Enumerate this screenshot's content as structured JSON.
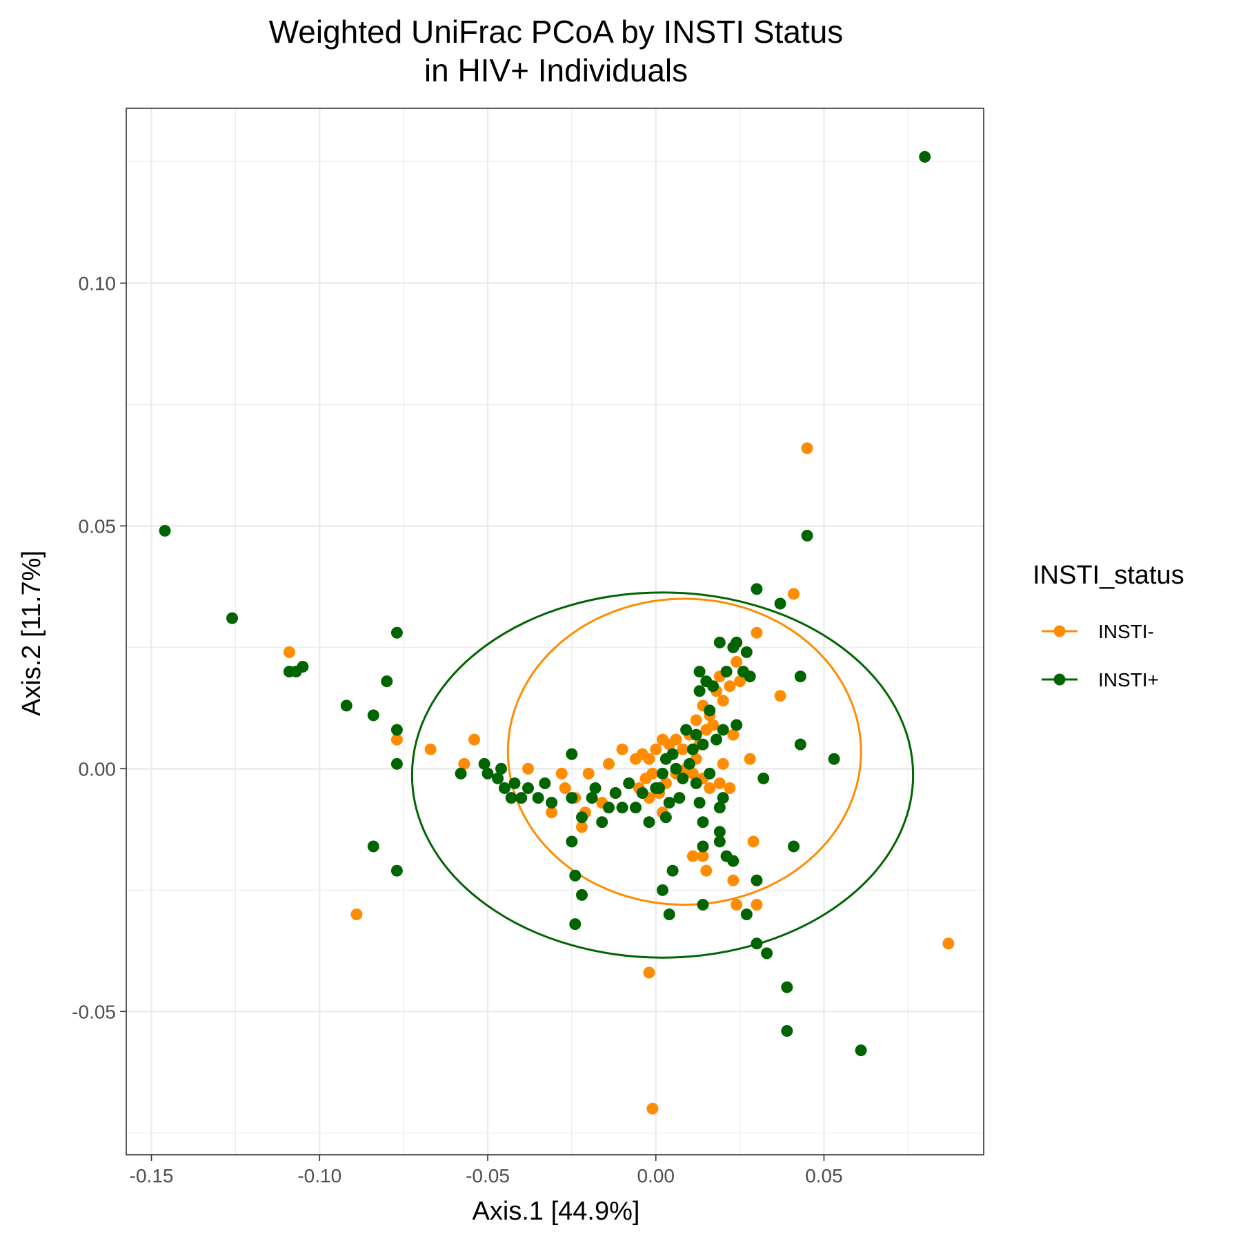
{
  "chart_data": {
    "type": "scatter",
    "title": "Weighted UniFrac PCoA by INSTI Status",
    "subtitle": "in HIV+ Individuals",
    "xlabel": "Axis.1   [44.9%]",
    "ylabel": "Axis.2   [11.7%]",
    "xlim": [
      -0.1575,
      0.0975
    ],
    "ylim": [
      -0.0795,
      0.136
    ],
    "xticks": [
      -0.15,
      -0.1,
      -0.05,
      0.0,
      0.05
    ],
    "xtick_labels": [
      "-0.15",
      "-0.10",
      "-0.05",
      "0.00",
      "0.05"
    ],
    "yticks": [
      -0.05,
      0.0,
      0.05,
      0.1
    ],
    "ytick_labels": [
      "-0.05",
      "0.00",
      "0.05",
      "0.10"
    ],
    "grid": true,
    "legend": {
      "title": "INSTI_status",
      "placement": "right"
    },
    "series": [
      {
        "name": "INSTI-",
        "color": "#FF8C00",
        "ellipse": {
          "cx": 0.0085,
          "cy": 0.0035,
          "rx": 0.0525,
          "ry": 0.0315
        },
        "points": [
          [
            0.045,
            0.066
          ],
          [
            0.041,
            0.036
          ],
          [
            0.03,
            0.028
          ],
          [
            0.037,
            0.015
          ],
          [
            -0.109,
            0.024
          ],
          [
            -0.077,
            0.006
          ],
          [
            -0.067,
            0.004
          ],
          [
            -0.054,
            0.006
          ],
          [
            -0.057,
            0.001
          ],
          [
            -0.038,
            0.0
          ],
          [
            -0.028,
            -0.001
          ],
          [
            -0.02,
            -0.001
          ],
          [
            -0.014,
            0.001
          ],
          [
            -0.01,
            0.004
          ],
          [
            -0.006,
            0.002
          ],
          [
            -0.004,
            0.003
          ],
          [
            -0.002,
            0.002
          ],
          [
            0.0,
            0.004
          ],
          [
            0.002,
            0.006
          ],
          [
            0.004,
            0.005
          ],
          [
            0.006,
            0.006
          ],
          [
            0.008,
            0.004
          ],
          [
            0.01,
            0.007
          ],
          [
            0.012,
            0.01
          ],
          [
            0.014,
            0.013
          ],
          [
            0.016,
            0.011
          ],
          [
            0.018,
            0.016
          ],
          [
            0.019,
            0.019
          ],
          [
            0.02,
            0.014
          ],
          [
            0.022,
            0.017
          ],
          [
            0.024,
            0.022
          ],
          [
            0.025,
            0.018
          ],
          [
            0.023,
            0.007
          ],
          [
            0.028,
            0.002
          ],
          [
            0.015,
            0.008
          ],
          [
            0.017,
            0.009
          ],
          [
            0.013,
            0.005
          ],
          [
            0.011,
            -0.001
          ],
          [
            0.014,
            -0.002
          ],
          [
            0.019,
            -0.003
          ],
          [
            0.022,
            -0.004
          ],
          [
            0.009,
            0.0
          ],
          [
            0.006,
            -0.001
          ],
          [
            0.003,
            -0.003
          ],
          [
            0.001,
            -0.005
          ],
          [
            -0.002,
            -0.006
          ],
          [
            -0.005,
            -0.004
          ],
          [
            -0.008,
            -0.003
          ],
          [
            -0.012,
            -0.005
          ],
          [
            -0.016,
            -0.007
          ],
          [
            -0.021,
            -0.009
          ],
          [
            -0.024,
            -0.006
          ],
          [
            -0.031,
            -0.009
          ],
          [
            -0.027,
            -0.004
          ],
          [
            -0.022,
            -0.012
          ],
          [
            -0.003,
            -0.002
          ],
          [
            -0.001,
            -0.001
          ],
          [
            0.002,
            -0.009
          ],
          [
            0.011,
            -0.018
          ],
          [
            0.015,
            -0.021
          ],
          [
            0.014,
            -0.018
          ],
          [
            0.023,
            -0.023
          ],
          [
            0.029,
            -0.015
          ],
          [
            0.024,
            -0.028
          ],
          [
            0.03,
            -0.028
          ],
          [
            -0.089,
            -0.03
          ],
          [
            -0.002,
            -0.042
          ],
          [
            -0.001,
            -0.07
          ],
          [
            0.087,
            -0.036
          ],
          [
            0.02,
            0.001
          ],
          [
            0.016,
            -0.004
          ],
          [
            0.012,
            0.002
          ]
        ]
      },
      {
        "name": "INSTI+",
        "color": "#006400",
        "ellipse": {
          "cx": 0.002,
          "cy": -0.0013,
          "rx": 0.0745,
          "ry": 0.0376
        },
        "points": [
          [
            0.08,
            0.126
          ],
          [
            0.045,
            0.048
          ],
          [
            -0.146,
            0.049
          ],
          [
            -0.126,
            0.031
          ],
          [
            -0.109,
            0.02
          ],
          [
            -0.107,
            0.02
          ],
          [
            -0.105,
            0.021
          ],
          [
            -0.092,
            0.013
          ],
          [
            -0.084,
            0.011
          ],
          [
            -0.08,
            0.018
          ],
          [
            -0.077,
            0.028
          ],
          [
            -0.077,
            0.008
          ],
          [
            -0.077,
            0.001
          ],
          [
            -0.058,
            -0.001
          ],
          [
            -0.051,
            0.001
          ],
          [
            -0.05,
            -0.001
          ],
          [
            -0.047,
            -0.002
          ],
          [
            -0.046,
            0.0
          ],
          [
            -0.045,
            -0.004
          ],
          [
            -0.043,
            -0.006
          ],
          [
            -0.042,
            -0.003
          ],
          [
            -0.04,
            -0.006
          ],
          [
            -0.038,
            -0.004
          ],
          [
            -0.035,
            -0.006
          ],
          [
            -0.033,
            -0.003
          ],
          [
            -0.031,
            -0.007
          ],
          [
            -0.025,
            0.003
          ],
          [
            -0.025,
            -0.006
          ],
          [
            -0.022,
            -0.01
          ],
          [
            -0.019,
            -0.006
          ],
          [
            -0.018,
            -0.004
          ],
          [
            -0.016,
            -0.011
          ],
          [
            -0.014,
            -0.008
          ],
          [
            -0.012,
            -0.005
          ],
          [
            -0.01,
            -0.008
          ],
          [
            -0.008,
            -0.003
          ],
          [
            -0.006,
            -0.008
          ],
          [
            -0.004,
            -0.005
          ],
          [
            -0.002,
            -0.011
          ],
          [
            0.0,
            -0.004
          ],
          [
            0.002,
            -0.001
          ],
          [
            0.003,
            0.002
          ],
          [
            0.004,
            -0.007
          ],
          [
            0.005,
            0.003
          ],
          [
            0.006,
            0.0
          ],
          [
            0.008,
            -0.002
          ],
          [
            0.009,
            0.008
          ],
          [
            0.01,
            0.001
          ],
          [
            0.011,
            0.004
          ],
          [
            0.012,
            0.007
          ],
          [
            0.013,
            0.016
          ],
          [
            0.013,
            0.02
          ],
          [
            0.014,
            0.005
          ],
          [
            0.015,
            0.018
          ],
          [
            0.016,
            0.012
          ],
          [
            0.017,
            0.017
          ],
          [
            0.018,
            0.006
          ],
          [
            0.019,
            0.026
          ],
          [
            0.02,
            0.008
          ],
          [
            0.021,
            0.02
          ],
          [
            0.023,
            0.025
          ],
          [
            0.024,
            0.026
          ],
          [
            0.024,
            0.009
          ],
          [
            0.026,
            0.02
          ],
          [
            0.027,
            0.024
          ],
          [
            0.028,
            0.019
          ],
          [
            0.03,
            0.037
          ],
          [
            0.032,
            -0.002
          ],
          [
            0.037,
            0.034
          ],
          [
            0.043,
            0.019
          ],
          [
            0.043,
            0.005
          ],
          [
            0.053,
            0.002
          ],
          [
            0.041,
            -0.016
          ],
          [
            0.03,
            -0.023
          ],
          [
            0.027,
            -0.03
          ],
          [
            0.03,
            -0.036
          ],
          [
            0.033,
            -0.038
          ],
          [
            0.039,
            -0.045
          ],
          [
            0.039,
            -0.054
          ],
          [
            0.061,
            -0.058
          ],
          [
            0.023,
            -0.019
          ],
          [
            0.021,
            -0.018
          ],
          [
            0.019,
            -0.015
          ],
          [
            0.019,
            -0.013
          ],
          [
            0.019,
            -0.008
          ],
          [
            0.02,
            -0.006
          ],
          [
            0.014,
            -0.011
          ],
          [
            0.013,
            -0.007
          ],
          [
            0.014,
            -0.016
          ],
          [
            0.005,
            -0.021
          ],
          [
            0.002,
            -0.025
          ],
          [
            0.004,
            -0.03
          ],
          [
            0.014,
            -0.028
          ],
          [
            -0.025,
            -0.015
          ],
          [
            -0.024,
            -0.022
          ],
          [
            -0.022,
            -0.026
          ],
          [
            -0.024,
            -0.032
          ],
          [
            -0.084,
            -0.016
          ],
          [
            -0.077,
            -0.021
          ],
          [
            0.001,
            -0.004
          ],
          [
            0.003,
            -0.01
          ],
          [
            0.007,
            -0.006
          ],
          [
            0.016,
            -0.001
          ],
          [
            0.012,
            -0.003
          ]
        ]
      }
    ]
  }
}
